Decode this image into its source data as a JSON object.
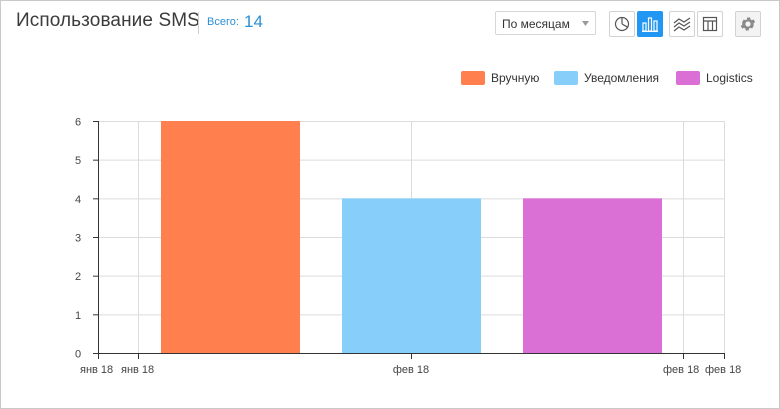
{
  "header": {
    "title": "Использование SMS",
    "total_label": "Всего:",
    "total_value": "14"
  },
  "period_select": {
    "value": "По месяцам"
  },
  "view_buttons": [
    {
      "icon": "pie-chart-icon",
      "active": false
    },
    {
      "icon": "bar-chart-icon",
      "active": true
    },
    {
      "icon": "area-chart-icon",
      "active": false
    },
    {
      "icon": "table-icon",
      "active": false
    }
  ],
  "settings_icon": "gear-icon",
  "colors": {
    "accent": "#2196f3",
    "manual": "#ff7f4f",
    "notifications": "#87cefa",
    "logistics": "#da70d6"
  },
  "chart_data": {
    "type": "bar",
    "x_tick_labels": [
      "янв 18",
      "янв 18",
      "фев 18",
      "фев 18",
      "фев 18"
    ],
    "ylim": [
      0,
      6
    ],
    "y_ticks": [
      0,
      1,
      2,
      3,
      4,
      5,
      6
    ],
    "grid": true,
    "legend_position": "top-right",
    "series": [
      {
        "name": "Вручную",
        "values": [
          6
        ],
        "color": "#ff7f4f"
      },
      {
        "name": "Уведомления",
        "values": [
          4
        ],
        "color": "#87cefa"
      },
      {
        "name": "Logistics",
        "values": [
          4
        ],
        "color": "#da70d6"
      }
    ]
  }
}
